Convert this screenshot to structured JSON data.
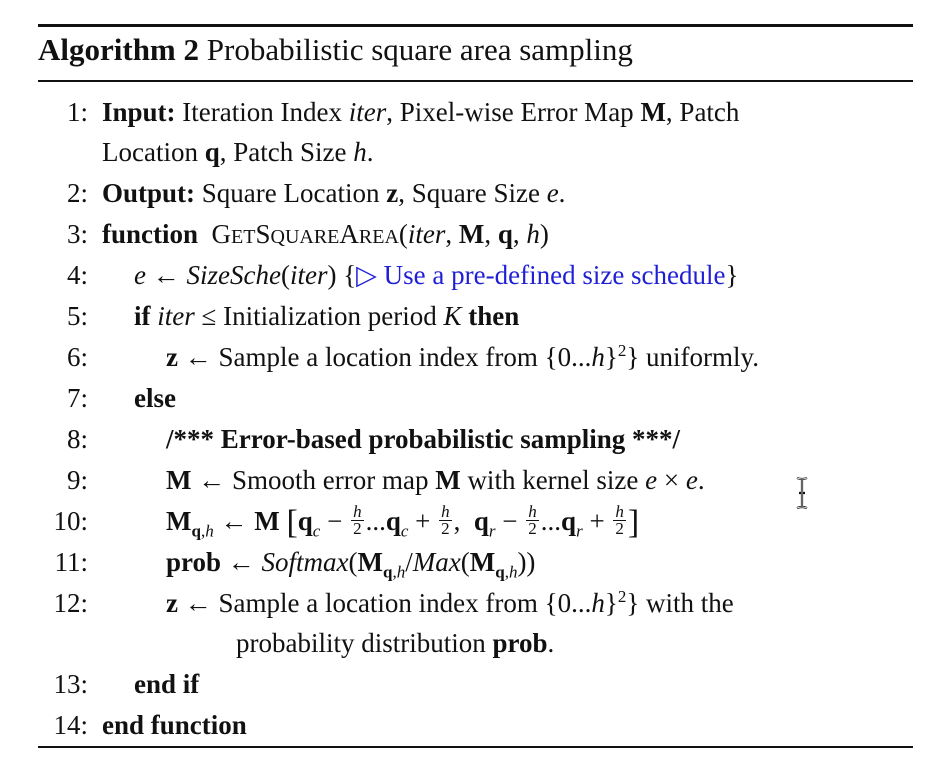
{
  "algorithm": {
    "label": "Algorithm 2",
    "title": "Probabilistic square area sampling"
  },
  "lines": [
    {
      "num": "1:"
    },
    {
      "num": ""
    },
    {
      "num": "2:"
    },
    {
      "num": "3:"
    },
    {
      "num": "4:"
    },
    {
      "num": "5:"
    },
    {
      "num": "6:"
    },
    {
      "num": "7:"
    },
    {
      "num": "8:"
    },
    {
      "num": "9:"
    },
    {
      "num": "10:"
    },
    {
      "num": "11:"
    },
    {
      "num": "12:"
    },
    {
      "num": ""
    },
    {
      "num": "13:"
    },
    {
      "num": "14:"
    }
  ],
  "text": {
    "input_kw": "Input:",
    "input_a": " Iteration Index ",
    "iter": "iter",
    "input_b": ", Pixel-wise Error Map ",
    "M": "M",
    "input_c": ", Patch",
    "input_d": "Location ",
    "q": "q",
    "input_e": ", Patch Size ",
    "h": "h",
    "period": ".",
    "output_kw": "Output:",
    "output_a": " Square Location ",
    "z": "z",
    "output_b": ", Square Size ",
    "e": "e",
    "function_kw": "function",
    "fn_G": "G",
    "fn_ET": "ET",
    "fn_S": "S",
    "fn_QUARE": "QUARE",
    "fn_A": "A",
    "fn_REA": "REA",
    "size_sche": "SizeSche",
    "comment": "▷ Use a pre-defined size schedule",
    "if_kw": "if",
    "if_text": " Initialization period ",
    "K": "K",
    "then_kw": "then",
    "sample_a": " Sample a location index from {0...",
    "sample_b": "} uniformly.",
    "else_kw": "else",
    "comment2": "/*** Error-based probabilistic sampling ***/",
    "smooth_a": " Smooth error map ",
    "smooth_b": " with kernel size ",
    "prob": "prob",
    "softmax": "Softmax",
    "max": "Max",
    "sample_c": "} with the",
    "sample_d": "probability distribution ",
    "end_if": "end if",
    "end_function": "end function"
  }
}
